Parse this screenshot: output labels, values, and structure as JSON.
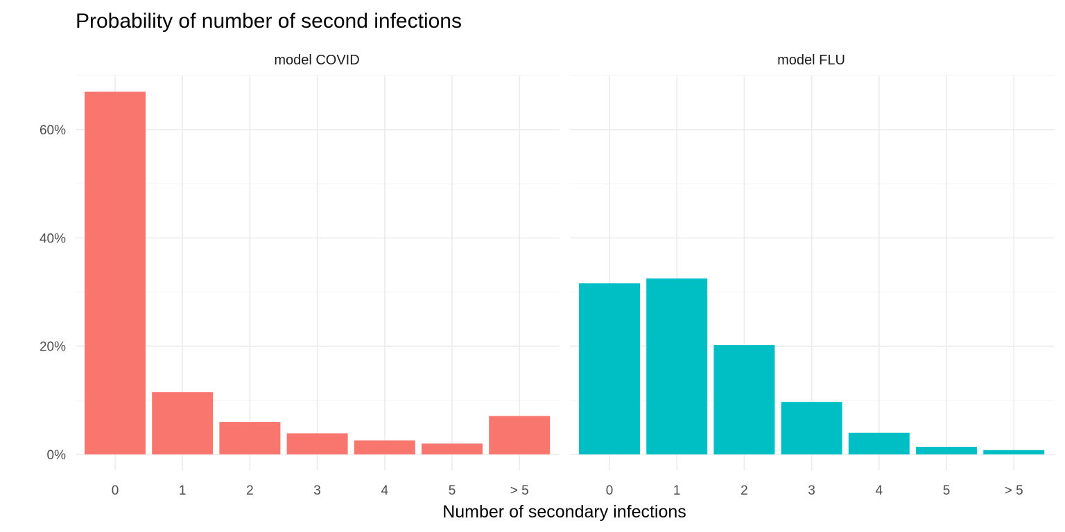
{
  "chart_data": {
    "type": "bar",
    "title": "Probability of number of second infections",
    "xlabel": "Number of secondary infections",
    "ylabel": "",
    "categories": [
      "0",
      "1",
      "2",
      "3",
      "4",
      "5",
      "> 5"
    ],
    "y_ticks": [
      "0%",
      "20%",
      "40%",
      "60%"
    ],
    "ylim": [
      0,
      0.7
    ],
    "grid": true,
    "legend": "none",
    "panels": [
      {
        "name": "model COVID",
        "color": "#F8766D",
        "values": [
          0.67,
          0.115,
          0.06,
          0.039,
          0.026,
          0.02,
          0.071
        ]
      },
      {
        "name": "model FLU",
        "color": "#00BFC4",
        "values": [
          0.316,
          0.325,
          0.202,
          0.097,
          0.04,
          0.014,
          0.008
        ]
      }
    ]
  }
}
